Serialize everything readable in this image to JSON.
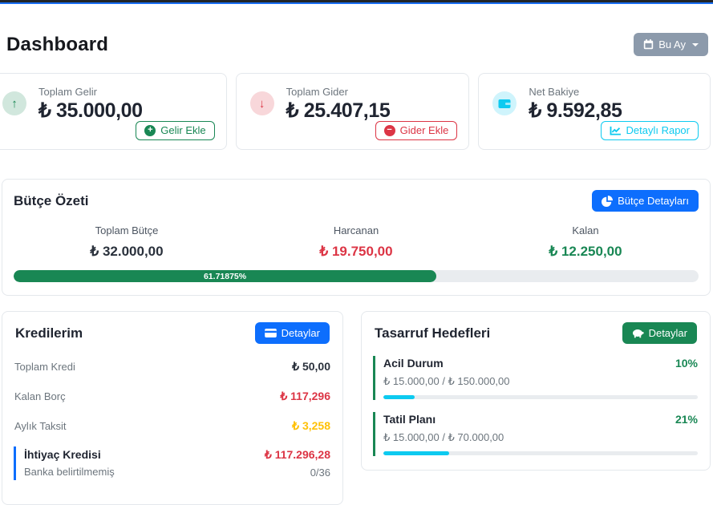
{
  "colors": {
    "primary": "#0d6efd",
    "success": "#198754",
    "danger": "#dc3545",
    "warning": "#ffc107",
    "info": "#0dcaf0",
    "secondary": "#8c9aab",
    "navbar": "#212529",
    "navbar_accent": "#186ef2"
  },
  "page": {
    "title": "Dashboard"
  },
  "period_button": {
    "label": "Bu Ay",
    "icon": "calendar-icon",
    "caret": "chevron-down-icon"
  },
  "stats": [
    {
      "label": "Toplam Gelir",
      "value": "₺ 35.000,00",
      "icon": "arrow-up-icon",
      "button": {
        "label": "Gelir Ekle",
        "icon": "plus-circle-icon"
      }
    },
    {
      "label": "Toplam Gider",
      "value": "₺ 25.407,15",
      "icon": "arrow-down-icon",
      "button": {
        "label": "Gider Ekle",
        "icon": "minus-circle-icon"
      }
    },
    {
      "label": "Net Bakiye",
      "value": "₺ 9.592,85",
      "icon": "wallet-icon",
      "button": {
        "label": "Detaylı Rapor",
        "icon": "chart-line-icon"
      }
    }
  ],
  "budget": {
    "title": "Bütçe Özeti",
    "details_button": {
      "label": "Bütçe Detayları",
      "icon": "pie-chart-icon"
    },
    "columns": [
      {
        "label": "Toplam Bütçe",
        "value": "₺ 32.000,00"
      },
      {
        "label": "Harcanan",
        "value": "₺ 19.750,00"
      },
      {
        "label": "Kalan",
        "value": "₺ 12.250,00"
      }
    ],
    "progress_percent": 61.71875,
    "progress_label": "61.71875%"
  },
  "loans": {
    "title": "Kredilerim",
    "details_button": {
      "label": "Detaylar",
      "icon": "credit-card-icon"
    },
    "rows": [
      {
        "label": "Toplam Kredi",
        "value": "₺ 50,00"
      },
      {
        "label": "Kalan Borç",
        "value": "₺ 117,296"
      },
      {
        "label": "Aylık Taksit",
        "value": "₺ 3,258"
      }
    ],
    "items": [
      {
        "name": "İhtiyaç Kredisi",
        "subtitle": "Banka belirtilmemiş",
        "amount": "₺ 117.296,28",
        "installments": "0/36"
      }
    ]
  },
  "savings": {
    "title": "Tasarruf Hedefleri",
    "details_button": {
      "label": "Detaylar",
      "icon": "piggy-bank-icon"
    },
    "goals": [
      {
        "name": "Acil Durum",
        "percent": 10,
        "percent_label": "10%",
        "amounts": "₺ 15.000,00 / ₺ 150.000,00"
      },
      {
        "name": "Tatil Planı",
        "percent": 21,
        "percent_label": "21%",
        "amounts": "₺ 15.000,00 / ₺ 70.000,00"
      }
    ]
  }
}
